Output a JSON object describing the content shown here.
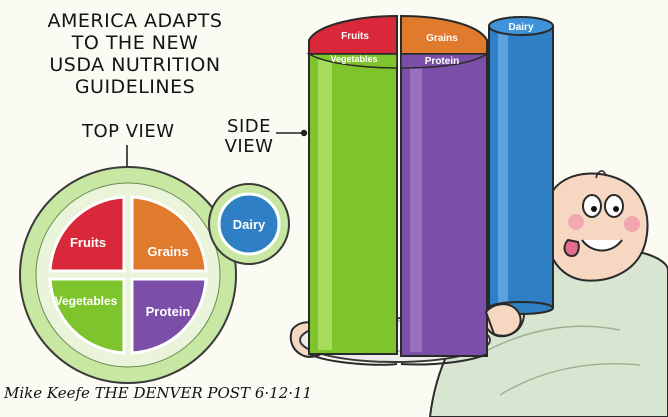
{
  "title": {
    "line1": "AMERICA ADAPTS",
    "line2": "TO THE NEW",
    "line3": "USDA NUTRITION",
    "line4": "GUIDELINES"
  },
  "callouts": {
    "top_view": "TOP VIEW",
    "side_line1": "SIDE",
    "side_line2": "VIEW"
  },
  "plate_top_view": {
    "fruits": "Fruits",
    "grains": "Grains",
    "vegetables": "Vegetables",
    "protein": "Protein",
    "dairy": "Dairy"
  },
  "side_view": {
    "fruits": "Fruits",
    "grains": "Grains",
    "vegetables": "Vegetables",
    "protein": "Protein",
    "dairy": "Dairy"
  },
  "signature": "Mike Keefe THE DENVER POST 6·12·11",
  "colors": {
    "fruits": "#d9283a",
    "grains": "#e07a2c",
    "vegetables": "#7ec52d",
    "protein": "#7b4fa8",
    "dairy": "#2e7fc4",
    "plate_rim": "#c8e7a3"
  }
}
